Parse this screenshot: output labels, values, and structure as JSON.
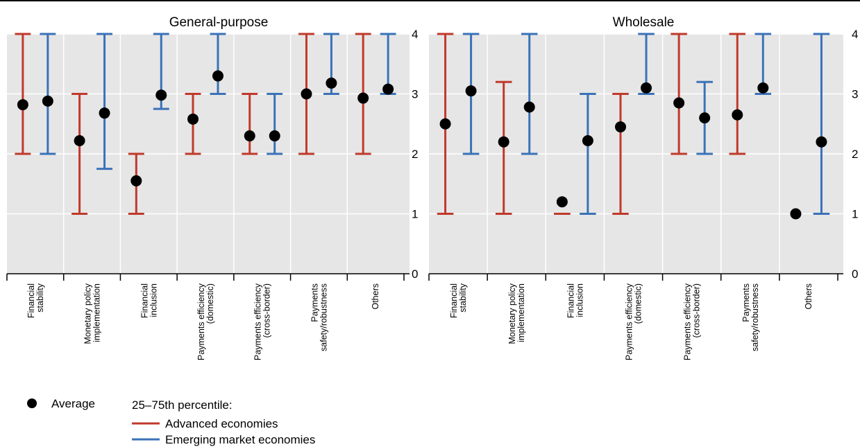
{
  "chart_data": [
    {
      "type": "errorbar",
      "title": "General-purpose",
      "ylim": [
        0,
        4
      ],
      "yticks": [
        "0",
        "1",
        "2",
        "3",
        "4"
      ],
      "grid": true,
      "categories": [
        [
          "Financial",
          "stability"
        ],
        [
          "Monetary policy",
          "implementation"
        ],
        [
          "Financial",
          "inclusion"
        ],
        [
          "Payments efficiency",
          "(domestic)"
        ],
        [
          "Payments efficiency",
          "(cross-border)"
        ],
        [
          "Payments",
          "safety/robustness"
        ],
        [
          "Others"
        ]
      ],
      "series": [
        {
          "name": "Advanced economies",
          "color": "#c0392b",
          "p25": [
            2,
            1,
            1,
            2,
            2,
            2,
            2
          ],
          "p75": [
            4,
            3,
            2,
            3,
            3,
            4,
            4
          ],
          "average": [
            2.82,
            2.22,
            1.55,
            2.58,
            2.3,
            3.0,
            2.93
          ]
        },
        {
          "name": "Emerging market economies",
          "color": "#3a72b8",
          "p25": [
            2,
            1.75,
            2.75,
            3,
            2,
            3,
            3
          ],
          "p75": [
            4,
            4,
            4,
            4,
            3,
            4,
            4
          ],
          "average": [
            2.88,
            2.68,
            2.98,
            3.3,
            2.3,
            3.18,
            3.08
          ]
        }
      ]
    },
    {
      "type": "errorbar",
      "title": "Wholesale",
      "ylim": [
        0,
        4
      ],
      "yticks": [
        "0",
        "1",
        "2",
        "3",
        "4"
      ],
      "grid": true,
      "categories": [
        [
          "Financial",
          "stability"
        ],
        [
          "Monetary policy",
          "implementation"
        ],
        [
          "Financial",
          "inclusion"
        ],
        [
          "Payments efficiency",
          "(domestic)"
        ],
        [
          "Payments efficiency",
          "(cross-border)"
        ],
        [
          "Payments",
          "safety/robustness"
        ],
        [
          "Others"
        ]
      ],
      "series": [
        {
          "name": "Advanced economies",
          "color": "#c0392b",
          "p25": [
            1,
            1,
            1,
            1,
            2,
            2,
            null
          ],
          "p75": [
            4,
            3.2,
            1,
            3,
            4,
            4,
            null
          ],
          "average": [
            2.5,
            2.2,
            1.2,
            2.45,
            2.85,
            2.65,
            1.0
          ]
        },
        {
          "name": "Emerging market economies",
          "color": "#3a72b8",
          "p25": [
            2,
            2,
            1,
            3,
            2,
            3,
            1
          ],
          "p75": [
            4,
            4,
            3,
            4,
            3.2,
            4,
            4
          ],
          "average": [
            3.05,
            2.78,
            2.22,
            3.1,
            2.6,
            3.1,
            2.2
          ]
        }
      ]
    }
  ],
  "legend": {
    "average_label": "Average",
    "percentile_title": "25–75th percentile:",
    "advanced_label": "Advanced economies",
    "emerging_label": "Emerging market economies",
    "advanced_color": "#c0392b",
    "emerging_color": "#3a72b8",
    "average_color": "#000000"
  }
}
